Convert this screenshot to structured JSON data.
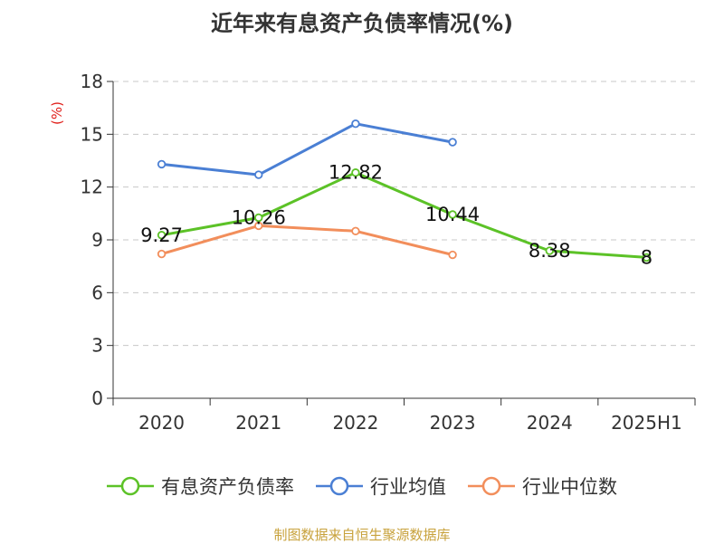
{
  "title": "近年来有息资产负债率情况(%)",
  "source": "制图数据来自恒生聚源数据库",
  "chart_data": {
    "type": "line",
    "title": "近年来有息资产负债率情况(%)",
    "ylabel": "(%)",
    "xlabel": "",
    "categories": [
      "2020",
      "2021",
      "2022",
      "2023",
      "2024",
      "2025H1"
    ],
    "ylim": [
      0,
      18
    ],
    "yticks": [
      0,
      3,
      6,
      9,
      12,
      15,
      18
    ],
    "grid": true,
    "legend_position": "bottom",
    "series": [
      {
        "name": "有息资产负债率",
        "color": "#5cc227",
        "values": [
          9.27,
          10.26,
          12.82,
          10.44,
          8.38,
          8
        ],
        "labels": [
          "9.27",
          "10.26",
          "12.82",
          "10.44",
          "8.38",
          "8"
        ]
      },
      {
        "name": "行业均值",
        "color": "#4a7fd4",
        "values": [
          13.3,
          12.7,
          15.6,
          14.55,
          null,
          null
        ]
      },
      {
        "name": "行业中位数",
        "color": "#f28e5b",
        "values": [
          8.2,
          9.8,
          9.5,
          8.15,
          null,
          null
        ]
      }
    ]
  }
}
